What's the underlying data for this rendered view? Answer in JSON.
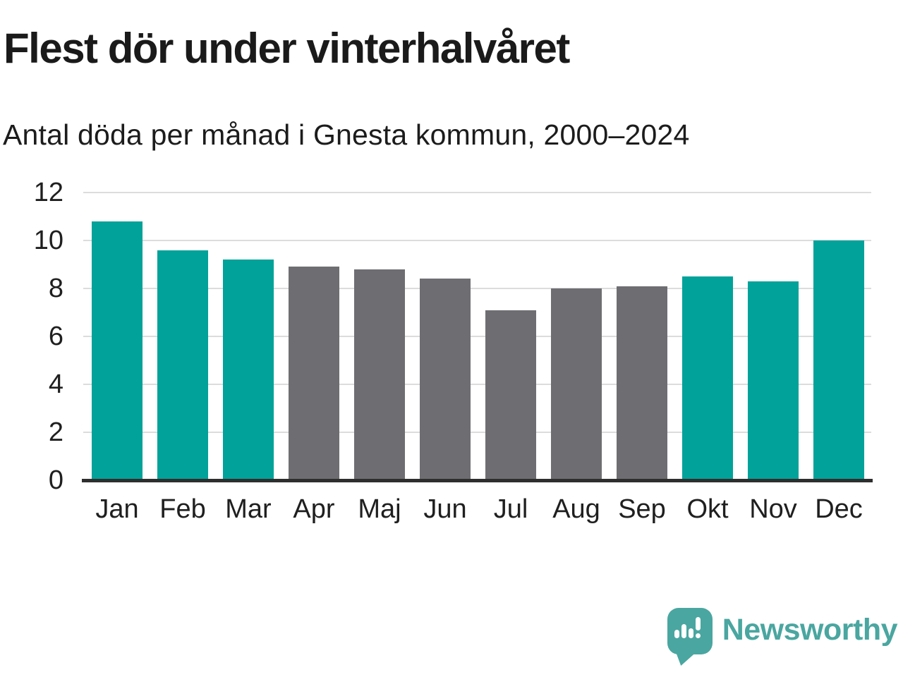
{
  "header": {
    "title": "Flest dör under vinterhalvåret",
    "subtitle": "Antal döda per månad i Gnesta kommun, 2000–2024"
  },
  "chart_data": {
    "type": "bar",
    "title": "Flest dör under vinterhalvåret",
    "subtitle": "Antal döda per månad i Gnesta kommun, 2000–2024",
    "categories": [
      "Jan",
      "Feb",
      "Mar",
      "Apr",
      "Maj",
      "Jun",
      "Jul",
      "Aug",
      "Sep",
      "Okt",
      "Nov",
      "Dec"
    ],
    "values": [
      10.8,
      9.6,
      9.2,
      8.9,
      8.8,
      8.4,
      7.1,
      8.0,
      8.1,
      8.5,
      8.3,
      10.0
    ],
    "groups": [
      "winter",
      "winter",
      "winter",
      "summer",
      "summer",
      "summer",
      "summer",
      "summer",
      "summer",
      "winter",
      "winter",
      "winter"
    ],
    "palette": {
      "winter": "#00a29a",
      "summer": "#6e6e72"
    },
    "xlabel": "",
    "ylabel": "",
    "ylim": [
      0,
      12
    ],
    "yticks": [
      0,
      2,
      4,
      6,
      8,
      10,
      12
    ],
    "grid": "horizontal",
    "legend": "none",
    "gridline_color": "#dcdcdc",
    "axis_color": "#2e2e2e",
    "text_color": "#1f1f1f"
  },
  "footer": {
    "brand": "Newsworthy",
    "logo_icon": "newsworthy-speech-bubble-barchart-icon",
    "brand_color": "#4aa6a0"
  }
}
